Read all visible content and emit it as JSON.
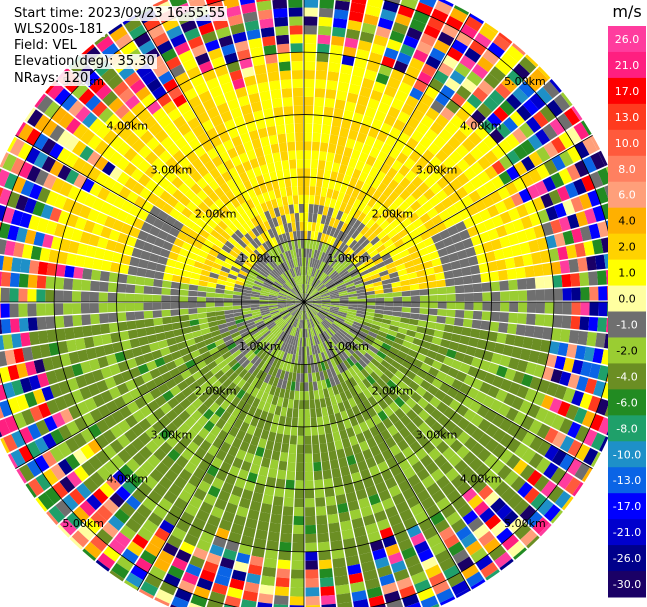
{
  "info": {
    "start_time": "Start time: 2023/09/23 16:55:55",
    "device": "WLS200s-181",
    "field": "Field: VEL",
    "elevation": "Elevation(deg): 35.30",
    "nrays": "NRays: 120"
  },
  "chart_data": {
    "type": "heatmap",
    "projection": "polar",
    "variable": "VEL",
    "n_rays": 120,
    "elevation_deg": 35.3,
    "range_ring_labels": [
      "1.00km",
      "2.00km",
      "3.00km",
      "4.00km",
      "5.00km"
    ],
    "max_range_km": 5.6,
    "inner_pattern": "near-zero velocities (0 to -1 m/s) in the center ring; mostly +1 to +4 m/s in the north sector; mostly -1 to -4 m/s in the south sector within ~3 km",
    "outer_pattern": "noise (all velocity values) beyond ~3.5-4.5 km",
    "colorbar": {
      "unit": "m/s",
      "ticks": [
        "26.0",
        "21.0",
        "17.0",
        "13.0",
        "10.0",
        "8.0",
        "6.0",
        "4.0",
        "2.0",
        "1.0",
        "0.0",
        "-1.0",
        "-2.0",
        "-4.0",
        "-6.0",
        "-8.0",
        "-10.0",
        "-13.0",
        "-17.0",
        "-21.0",
        "-26.0",
        "-30.0"
      ],
      "colors": [
        "#ff3c9e",
        "#ff1f80",
        "#ff0000",
        "#ff3a1e",
        "#ff5a3c",
        "#ff8060",
        "#ff9f7a",
        "#ffb000",
        "#ffd200",
        "#ffff00",
        "#ffffa0",
        "#6f6f6f",
        "#9acd32",
        "#6b8e23",
        "#228b22",
        "#1fa06a",
        "#1e90c8",
        "#0a64e6",
        "#0000ff",
        "#0000cd",
        "#00008b",
        "#1a0066"
      ]
    }
  }
}
